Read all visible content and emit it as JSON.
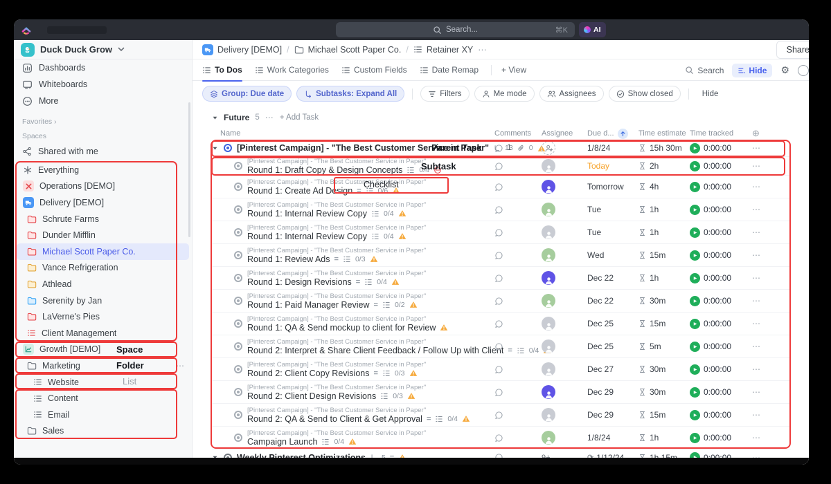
{
  "topbar": {
    "search_placeholder": "Search...",
    "shortcut": "⌘K",
    "ai_label": "AI"
  },
  "sidebar": {
    "workspace": {
      "name": "Duck Duck Grow"
    },
    "nav": [
      {
        "label": "Dashboards",
        "icon": "dashboards"
      },
      {
        "label": "Whiteboards",
        "icon": "whiteboards"
      },
      {
        "label": "More",
        "icon": "more"
      }
    ],
    "favorites_label": "Favorites",
    "favorites_chevron": "›",
    "spaces_label": "Spaces",
    "shared_label": "Shared with me",
    "tree": [
      {
        "label": "Everything",
        "icon": "everything",
        "indent": 0
      },
      {
        "label": "Operations [DEMO]",
        "icon": "operations",
        "indent": 0
      },
      {
        "label": "Delivery [DEMO]",
        "icon": "delivery",
        "indent": 0
      },
      {
        "label": "Schrute Farms",
        "icon": "folder-red",
        "indent": 1
      },
      {
        "label": "Dunder Mifflin",
        "icon": "folder-red",
        "indent": 1
      },
      {
        "label": "Michael Scott Paper Co.",
        "icon": "folder-red",
        "indent": 1,
        "selected": true
      },
      {
        "label": "Vance Refrigeration",
        "icon": "folder-yellow",
        "indent": 1
      },
      {
        "label": "Athlead",
        "icon": "folder-yellow",
        "indent": 1
      },
      {
        "label": "Serenity by Jan",
        "icon": "folder-blue",
        "indent": 1
      },
      {
        "label": "LaVerne's Pies",
        "icon": "folder-red",
        "indent": 1
      },
      {
        "label": "Client Management",
        "icon": "list-red",
        "indent": 1
      },
      {
        "label": "Growth [DEMO]",
        "icon": "growth",
        "indent": 0
      },
      {
        "label": "Marketing",
        "icon": "folder-open",
        "indent": 1,
        "trailing": "⋯"
      },
      {
        "label": "Website",
        "icon": "list-gray",
        "indent": 2
      },
      {
        "label": "Content",
        "icon": "list-gray",
        "indent": 2
      },
      {
        "label": "Email",
        "icon": "list-gray",
        "indent": 2
      },
      {
        "label": "Sales",
        "icon": "folder-gray",
        "indent": 1
      }
    ]
  },
  "breadcrumb": {
    "items": [
      {
        "label": "Delivery [DEMO]",
        "icon": "delivery"
      },
      {
        "label": "Michael Scott Paper Co.",
        "icon": "folder-gray"
      },
      {
        "label": "Retainer XY",
        "icon": "list-gray"
      }
    ],
    "more": "⋯",
    "share_label": "Share"
  },
  "tabs": {
    "items": [
      {
        "label": "To Dos",
        "icon": "list-tab",
        "active": true
      },
      {
        "label": "Work Categories",
        "icon": "list-tab"
      },
      {
        "label": "Custom Fields",
        "icon": "list-tab"
      },
      {
        "label": "Date Remap",
        "icon": "list-tab"
      }
    ],
    "add_view": "+ View",
    "search_label": "Search",
    "hide_label": "Hide"
  },
  "filter_bar": {
    "chips": [
      {
        "label": "Group: Due date",
        "icon": "layers",
        "active": true
      },
      {
        "label": "Subtasks: Expand All",
        "icon": "subtask",
        "active": true
      },
      {
        "label": "Filters",
        "icon": "funnel",
        "active": false
      },
      {
        "label": "Me mode",
        "icon": "person",
        "active": false
      },
      {
        "label": "Assignees",
        "icon": "people",
        "active": false
      },
      {
        "label": "Show closed",
        "icon": "check",
        "active": false
      }
    ],
    "hide_label": "Hide"
  },
  "group": {
    "name": "Future",
    "count": "5",
    "menu": "⋯",
    "add_task": "+ Add Task"
  },
  "columns": {
    "name": "Name",
    "comments": "Comments",
    "assignee": "Assignee",
    "due": "Due d...",
    "estimate": "Time estimate",
    "tracked": "Time tracked",
    "add": "⊕"
  },
  "tasks": [
    {
      "kind": "parent",
      "status": "blue",
      "name": "[Pinterest Campaign] - \"The Best Customer Service in Paper\"",
      "subtask_count": "13",
      "attach_count": "0",
      "warning": true,
      "comments": "1",
      "assignee": {
        "type": "add"
      },
      "due": {
        "text": "1/8/24"
      },
      "estimate": "15h 30m",
      "tracked": "0:00:00"
    },
    {
      "kind": "sub",
      "compact": true,
      "status": "gray",
      "context": "[Pinterest Campaign] - \"The Best Customer Service in Paper\"",
      "name": "Round 1: Draft Copy & Design Concepts",
      "checklist": "0/4",
      "blocked": true,
      "assignee": {
        "type": "avatar",
        "color": "gray"
      },
      "due": {
        "text": "Today",
        "highlight": true
      },
      "estimate": "2h",
      "tracked": "0:00:00"
    },
    {
      "kind": "sub",
      "status": "gray",
      "context": "[Pinterest Campaign] - \"The Best Customer Service in Paper\"",
      "name": "Round 1: Create Ad Design",
      "expand": true,
      "checklist": "0/6",
      "warning": true,
      "assignee": {
        "type": "avatar",
        "color": "purple"
      },
      "due": {
        "text": "Tomorrow"
      },
      "estimate": "4h",
      "tracked": "0:00:00"
    },
    {
      "kind": "sub",
      "status": "gray",
      "context": "[Pinterest Campaign] - \"The Best Customer Service in Paper\"",
      "name": "Round 1: Internal Review Copy",
      "checklist": "0/4",
      "warning": true,
      "assignee": {
        "type": "avatar",
        "color": "green"
      },
      "due": {
        "text": "Tue"
      },
      "estimate": "1h",
      "tracked": "0:00:00"
    },
    {
      "kind": "sub",
      "status": "gray",
      "context": "[Pinterest Campaign] - \"The Best Customer Service in Paper\"",
      "name": "Round 1: Internal Review Copy",
      "checklist": "0/4",
      "warning": true,
      "assignee": {
        "type": "avatar",
        "color": "gray"
      },
      "due": {
        "text": "Tue"
      },
      "estimate": "1h",
      "tracked": "0:00:00"
    },
    {
      "kind": "sub",
      "status": "gray",
      "context": "[Pinterest Campaign] - \"The Best Customer Service in Paper\"",
      "name": "Round 1: Review Ads",
      "expand": true,
      "checklist": "0/3",
      "warning": true,
      "assignee": {
        "type": "avatar",
        "color": "green"
      },
      "due": {
        "text": "Wed"
      },
      "estimate": "15m",
      "tracked": "0:00:00"
    },
    {
      "kind": "sub",
      "status": "gray",
      "context": "[Pinterest Campaign] - \"The Best Customer Service in Paper\"",
      "name": "Round 1: Design Revisions",
      "expand": true,
      "checklist": "0/4",
      "warning": true,
      "assignee": {
        "type": "avatar",
        "color": "purple"
      },
      "due": {
        "text": "Dec 22"
      },
      "estimate": "1h",
      "tracked": "0:00:00"
    },
    {
      "kind": "sub",
      "status": "gray",
      "context": "[Pinterest Campaign] - \"The Best Customer Service in Paper\"",
      "name": "Round 1: Paid Manager Review",
      "expand": true,
      "checklist": "0/2",
      "warning": true,
      "assignee": {
        "type": "avatar",
        "color": "green"
      },
      "due": {
        "text": "Dec 22"
      },
      "estimate": "30m",
      "tracked": "0:00:00"
    },
    {
      "kind": "sub",
      "status": "gray",
      "context": "[Pinterest Campaign] - \"The Best Customer Service in Paper\"",
      "name": "Round 1: QA & Send mockup to client for Review",
      "warning": true,
      "assignee": {
        "type": "avatar",
        "color": "gray"
      },
      "due": {
        "text": "Dec 25"
      },
      "estimate": "15m",
      "tracked": "0:00:00"
    },
    {
      "kind": "sub",
      "status": "gray",
      "context": "[Pinterest Campaign] - \"The Best Customer Service in Paper\"",
      "name": "Round 2: Interpret & Share Client Feedback / Follow Up with Client",
      "expand": true,
      "checklist": "0/4",
      "warning": true,
      "assignee": {
        "type": "avatar",
        "color": "gray"
      },
      "due": {
        "text": "Dec 25"
      },
      "estimate": "5m",
      "tracked": "0:00:00"
    },
    {
      "kind": "sub",
      "status": "gray",
      "context": "[Pinterest Campaign] - \"The Best Customer Service in Paper\"",
      "name": "Round 2: Client Copy Revisions",
      "expand": true,
      "checklist": "0/3",
      "warning": true,
      "assignee": {
        "type": "avatar",
        "color": "gray"
      },
      "due": {
        "text": "Dec 27"
      },
      "estimate": "30m",
      "tracked": "0:00:00"
    },
    {
      "kind": "sub",
      "status": "gray",
      "context": "[Pinterest Campaign] - \"The Best Customer Service in Paper\"",
      "name": "Round 2: Client Design Revisions",
      "checklist": "0/3",
      "warning": true,
      "assignee": {
        "type": "avatar",
        "color": "purple"
      },
      "due": {
        "text": "Dec 29"
      },
      "estimate": "30m",
      "tracked": "0:00:00"
    },
    {
      "kind": "sub",
      "status": "gray",
      "context": "[Pinterest Campaign] - \"The Best Customer Service in Paper\"",
      "name": "Round 2: QA & Send to Client & Get Approval",
      "expand": true,
      "checklist": "0/4",
      "warning": true,
      "assignee": {
        "type": "avatar",
        "color": "gray"
      },
      "due": {
        "text": "Dec 29"
      },
      "estimate": "15m",
      "tracked": "0:00:00"
    },
    {
      "kind": "sub",
      "status": "gray",
      "context": "[Pinterest Campaign] - \"The Best Customer Service in Paper\"",
      "name": "Campaign Launch",
      "checklist": "0/4",
      "warning": true,
      "assignee": {
        "type": "avatar",
        "color": "green"
      },
      "due": {
        "text": "1/8/24"
      },
      "estimate": "1h",
      "tracked": "0:00:00"
    },
    {
      "kind": "parent",
      "status": "dark",
      "name": "Weekly Pinterest Optimizations",
      "subtask_count": "5",
      "expand": true,
      "warning": true,
      "assignee": {
        "type": "overflow",
        "text": "9+"
      },
      "due": {
        "text": "1/12/24",
        "recurring": true
      },
      "estimate": "1h 15m",
      "tracked": "0:00:00"
    }
  ],
  "annotations": {
    "parent_task": "Parent Task",
    "subtask": "Subtask",
    "checklist": "Checklist",
    "space": "Space",
    "folder": "Folder",
    "list": "List"
  },
  "colors": {
    "accent_blue": "#4a63ee",
    "annotation_red": "#ee3a3a",
    "warning_orange": "#f2a63c",
    "tracked_green": "#1fae5a",
    "today_orange": "#f7a32a",
    "selected_item_bg": "#e4e9fc"
  }
}
